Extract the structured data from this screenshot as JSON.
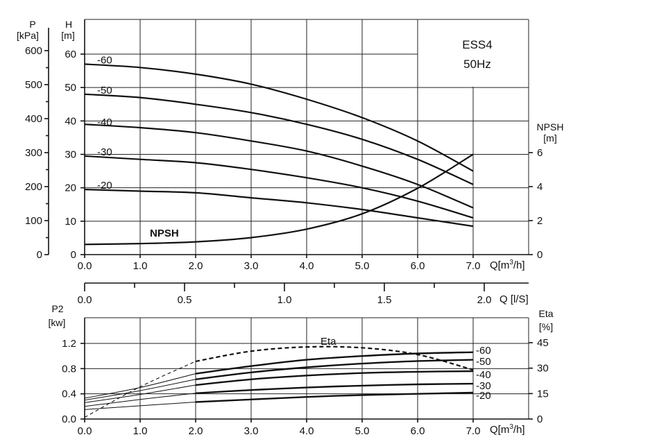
{
  "chart_data": [
    {
      "type": "line",
      "title": "ESS4",
      "subtitle": "50Hz",
      "x_label": "Q[m³/h]",
      "x2_label": "Q [l/S]",
      "x_ticks": [
        "0.0",
        "1.0",
        "2.0",
        "3.0",
        "4.0",
        "5.0",
        "6.0",
        "7.0"
      ],
      "x2_ticks": [
        "0.0",
        "0.5",
        "1.0",
        "1.5",
        "2.0"
      ],
      "xlim": [
        0,
        7.0
      ],
      "y_left_label": "H\n[m]",
      "y_left_ticks": [
        "0",
        "10",
        "20",
        "30",
        "40",
        "50",
        "60"
      ],
      "ylim": [
        0,
        60
      ],
      "y_pressure_label": "P\n[kPa]",
      "y_pressure_ticks": [
        "0",
        "100",
        "200",
        "300",
        "400",
        "500",
        "600"
      ],
      "y_right_label": "NPSH\n[m]",
      "y_right_ticks": [
        "0",
        "2",
        "4",
        "6"
      ],
      "y_right_lim": [
        0,
        6
      ],
      "series": [
        {
          "name": "-60",
          "x": [
            0,
            1,
            2,
            3,
            4,
            5,
            6,
            7
          ],
          "values": [
            57,
            56,
            54,
            51,
            46.5,
            41,
            34,
            25
          ]
        },
        {
          "name": "-50",
          "x": [
            0,
            1,
            2,
            3,
            4,
            5,
            6,
            7
          ],
          "values": [
            48,
            47,
            45,
            42.5,
            39,
            34.5,
            28.5,
            21
          ]
        },
        {
          "name": "-40",
          "x": [
            0,
            1,
            2,
            3,
            4,
            5,
            6,
            7
          ],
          "values": [
            39,
            38,
            36.5,
            34,
            31,
            26.5,
            21,
            14
          ]
        },
        {
          "name": "-30",
          "x": [
            0,
            1,
            2,
            3,
            4,
            5,
            6,
            7
          ],
          "values": [
            29.5,
            28.5,
            27.5,
            25.5,
            23,
            20,
            16,
            11
          ]
        },
        {
          "name": "-20",
          "x": [
            0,
            1,
            2,
            3,
            4,
            5,
            6,
            7
          ],
          "values": [
            19.5,
            19,
            18.5,
            17,
            15.5,
            13.5,
            11,
            8.5
          ]
        },
        {
          "name": "NPSH",
          "axis": "right",
          "x": [
            0,
            1,
            2,
            3,
            4,
            5,
            6,
            7
          ],
          "values": [
            0.6,
            0.65,
            0.75,
            1.0,
            1.5,
            2.4,
            3.9,
            5.9
          ]
        }
      ]
    },
    {
      "type": "line",
      "x_label": "Q[m³/h]",
      "x_ticks": [
        "0.0",
        "1.0",
        "2.0",
        "3.0",
        "4.0",
        "5.0",
        "6.0",
        "7.0"
      ],
      "xlim": [
        0,
        7.0
      ],
      "y_left_label": "P2\n[kw]",
      "y_left_ticks": [
        "0.0",
        "0.4",
        "0.8",
        "1.2"
      ],
      "ylim": [
        0,
        1.2
      ],
      "y_right_label": "Eta\n[%]",
      "y_right_ticks": [
        "0",
        "15",
        "30",
        "45"
      ],
      "y_right_lim": [
        0,
        45
      ],
      "series": [
        {
          "name": "-60",
          "x": [
            0,
            1,
            2,
            3,
            4,
            5,
            6,
            7
          ],
          "values": [
            0.33,
            0.5,
            0.72,
            0.84,
            0.94,
            1.0,
            1.04,
            1.06
          ]
        },
        {
          "name": "-50",
          "x": [
            0,
            1,
            2,
            3,
            4,
            5,
            6,
            7
          ],
          "values": [
            0.3,
            0.45,
            0.63,
            0.74,
            0.82,
            0.88,
            0.92,
            0.94
          ]
        },
        {
          "name": "-40",
          "x": [
            0,
            1,
            2,
            3,
            4,
            5,
            6,
            7
          ],
          "values": [
            0.26,
            0.39,
            0.54,
            0.63,
            0.69,
            0.73,
            0.75,
            0.76
          ]
        },
        {
          "name": "-30",
          "x": [
            0,
            1,
            2,
            3,
            4,
            5,
            6,
            7
          ],
          "values": [
            0.2,
            0.31,
            0.41,
            0.46,
            0.5,
            0.53,
            0.55,
            0.56
          ]
        },
        {
          "name": "-20",
          "x": [
            0,
            1,
            2,
            3,
            4,
            5,
            6,
            7
          ],
          "values": [
            0.15,
            0.21,
            0.27,
            0.31,
            0.35,
            0.38,
            0.4,
            0.42
          ]
        },
        {
          "name": "Eta",
          "axis": "right",
          "dashed": true,
          "x": [
            0,
            1,
            2,
            3,
            4,
            5,
            6,
            7
          ],
          "values": [
            1,
            19,
            34,
            40,
            42.5,
            42,
            38,
            29
          ]
        }
      ]
    }
  ]
}
